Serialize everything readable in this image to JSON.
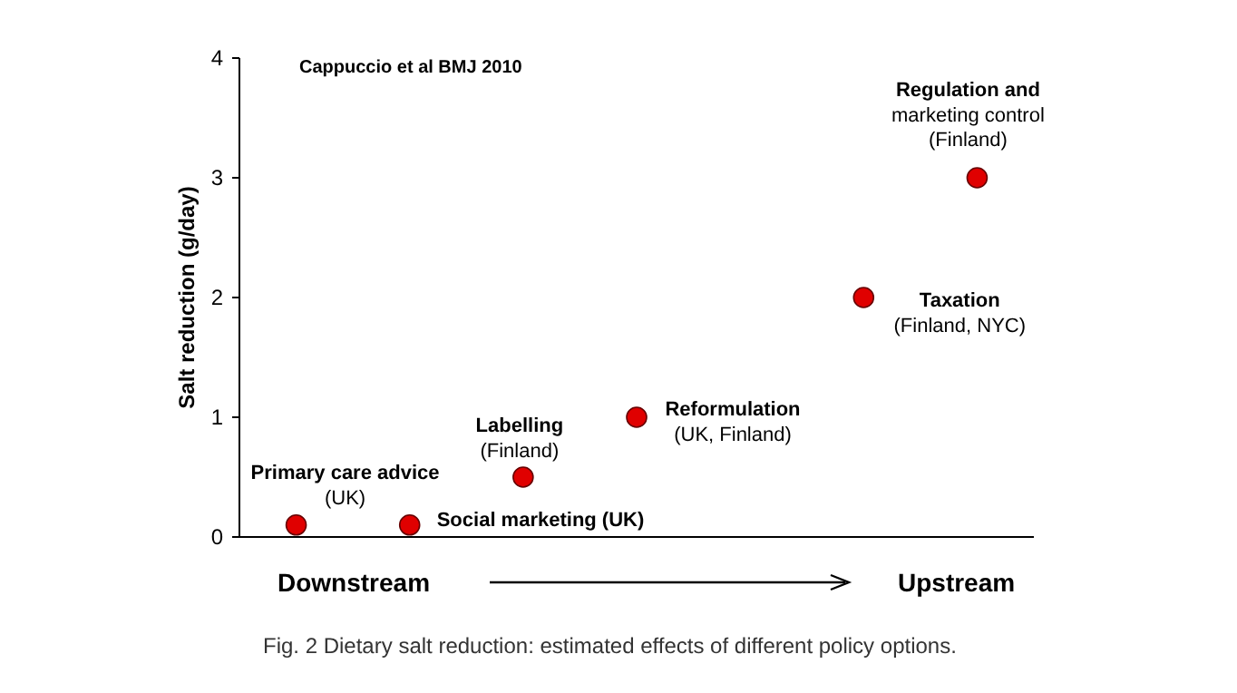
{
  "chart_data": {
    "type": "scatter",
    "ylabel": "Salt reduction (g/day)",
    "categories": [
      null,
      null,
      null,
      null,
      null,
      null,
      null
    ],
    "series": [
      {
        "color": "#e00000",
        "values": [
          0.1,
          0.1,
          0.5,
          1,
          null,
          2,
          3
        ]
      }
    ],
    "ylim": [
      0,
      4
    ],
    "yticks": [
      0,
      1,
      2,
      3,
      4
    ],
    "grid": false,
    "legend": false,
    "marker": "circle",
    "annotations": [
      "Cappuccio et al  BMJ 2010",
      "Primary care advice\n(UK)",
      "Social marketing (UK)",
      "Labelling\n(Finland)",
      "Reformulation\n(UK, Finland)",
      "Taxation\n(Finland, NYC)",
      "Regulation and\nmarketing control\n(Finland)",
      "Downstream",
      "Upstream",
      "Fig. 2 Dietary salt reduction: estimated effects of different policy options."
    ]
  }
}
